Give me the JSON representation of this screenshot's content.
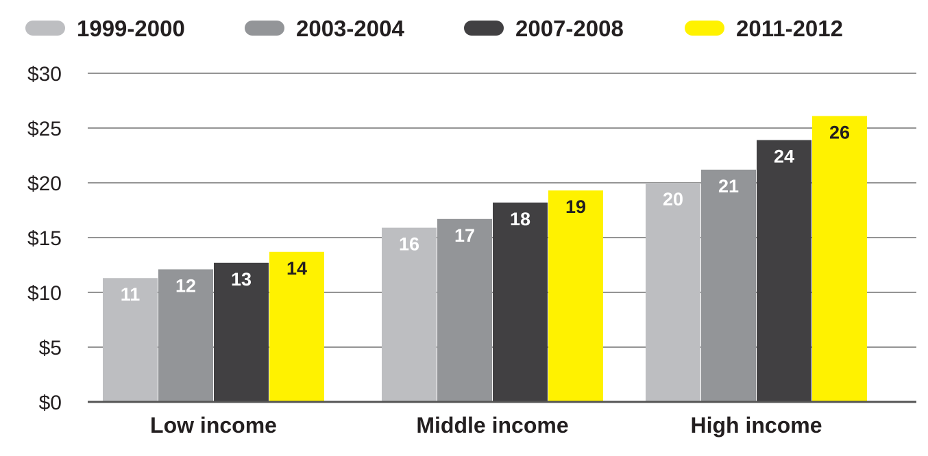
{
  "chart_data": {
    "type": "bar",
    "categories": [
      "Low income",
      "Middle income",
      "High income"
    ],
    "series": [
      {
        "name": "1999-2000",
        "color": "#bdbec1",
        "label_color": "#ffffff",
        "values": [
          11.3,
          15.9,
          20.0
        ]
      },
      {
        "name": "2003-2004",
        "color": "#939598",
        "label_color": "#ffffff",
        "values": [
          12.1,
          16.7,
          21.2
        ]
      },
      {
        "name": "2007-2008",
        "color": "#414042",
        "label_color": "#ffffff",
        "values": [
          12.7,
          18.2,
          23.9
        ]
      },
      {
        "name": "2011-2012",
        "color": "#fff200",
        "label_color": "#231f20",
        "values": [
          13.7,
          19.3,
          26.1
        ]
      }
    ],
    "data_labels": [
      [
        "11",
        "16",
        "20"
      ],
      [
        "12",
        "17",
        "21"
      ],
      [
        "13",
        "18",
        "24"
      ],
      [
        "14",
        "19",
        "26"
      ]
    ],
    "y_ticks": [
      0,
      5,
      10,
      15,
      20,
      25,
      30
    ],
    "y_tick_labels": [
      "$0",
      "$5",
      "$10",
      "$15",
      "$20",
      "$25",
      "$30"
    ],
    "ylim": [
      0,
      30
    ],
    "grid": true,
    "legend_position": "top"
  }
}
